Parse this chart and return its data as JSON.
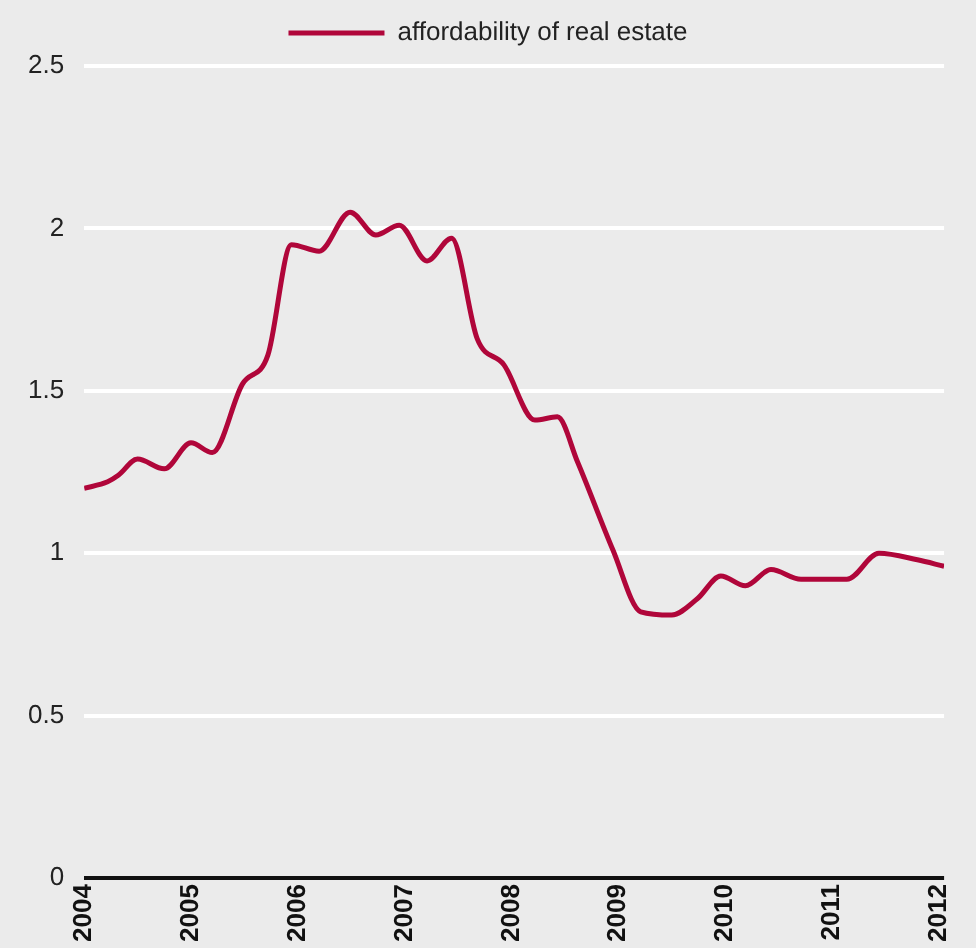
{
  "chart_data": {
    "type": "line",
    "x": [
      2004,
      2004.22,
      2004.32,
      2004.5,
      2004.75,
      2005.0,
      2005.2,
      2005.48,
      2005.72,
      2005.94,
      2006.2,
      2006.49,
      2006.73,
      2006.95,
      2007.21,
      2007.44,
      2007.68,
      2007.93,
      2008.22,
      2008.43,
      2008.62,
      2008.95,
      2009.21,
      2009.5,
      2009.74,
      2009.96,
      2010.19,
      2010.43,
      2010.71,
      2011.14,
      2011.44,
      2011.8,
      2012.05
    ],
    "series": [
      {
        "name": "affordability of real estate",
        "color": "#b0063a",
        "values": [
          1.2,
          1.22,
          1.24,
          1.29,
          1.26,
          1.34,
          1.31,
          1.52,
          1.61,
          1.95,
          1.93,
          2.05,
          1.98,
          2.01,
          1.9,
          1.97,
          1.66,
          1.58,
          1.41,
          1.42,
          1.28,
          1.01,
          0.82,
          0.81,
          0.86,
          0.93,
          0.9,
          0.95,
          0.92,
          0.92,
          1.0,
          0.98,
          0.96
        ]
      }
    ],
    "xlim": [
      2004,
      2012.05
    ],
    "xticks": [
      2004,
      2005,
      2006,
      2007,
      2008,
      2009,
      2010,
      2011,
      2012
    ],
    "ylim": [
      0,
      2.5
    ],
    "yticks": [
      0,
      0.5,
      1,
      1.5,
      2,
      2.5
    ],
    "grid": "y",
    "legend": "top",
    "marker": "none",
    "line_style": "solid"
  }
}
